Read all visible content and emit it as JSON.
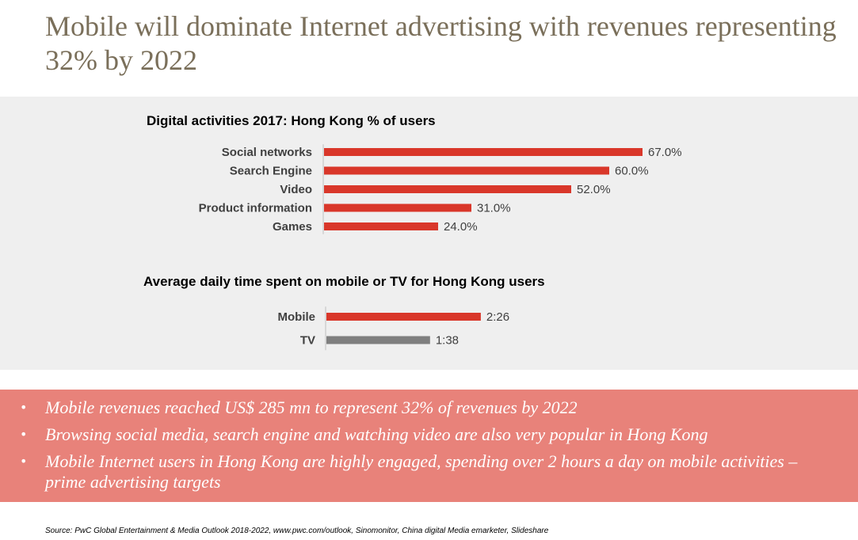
{
  "title": "Mobile will dominate Internet advertising with revenues representing 32% by 2022",
  "colors": {
    "title": "#7a6f5a",
    "panel_bg": "#efefef",
    "bar_red": "#d9372a",
    "bar_gray": "#7f7f7f",
    "bullet_bg": "#e8827a"
  },
  "chart_data": [
    {
      "type": "bar",
      "orientation": "horizontal",
      "title": "Digital activities 2017:  Hong Kong % of users",
      "categories": [
        "Social networks",
        "Search Engine",
        "Video",
        "Product information",
        "Games"
      ],
      "values": [
        67.0,
        60.0,
        52.0,
        31.0,
        24.0
      ],
      "value_labels": [
        "67.0%",
        "60.0%",
        "52.0%",
        "31.0%",
        "24.0%"
      ],
      "xlim": [
        0,
        100
      ],
      "grid": false,
      "legend": "none",
      "colors": [
        "#d9372a",
        "#d9372a",
        "#d9372a",
        "#d9372a",
        "#d9372a"
      ]
    },
    {
      "type": "bar",
      "orientation": "horizontal",
      "title": "Average daily time spent on mobile or TV for Hong Kong users",
      "categories": [
        "Mobile",
        "TV"
      ],
      "values": [
        146,
        98
      ],
      "value_labels": [
        "2:26",
        "1:38"
      ],
      "xlim": [
        0,
        300
      ],
      "grid": false,
      "legend": "none",
      "colors": [
        "#d9372a",
        "#7f7f7f"
      ]
    }
  ],
  "bullets": [
    "Mobile revenues reached  US$ 285 mn to represent 32% of revenues by 2022",
    "Browsing social media, search engine and watching video are also very popular in Hong Kong",
    "Mobile Internet users in Hong Kong are highly engaged, spending over 2 hours a day on mobile activities – prime advertising targets"
  ],
  "bullet_glyph": "•",
  "source": "Source:  PwC Global Entertainment & Media Outlook 2018-2022, www.pwc.com/outlook, Sinomonitor, China digital Media emarketer, Slideshare"
}
